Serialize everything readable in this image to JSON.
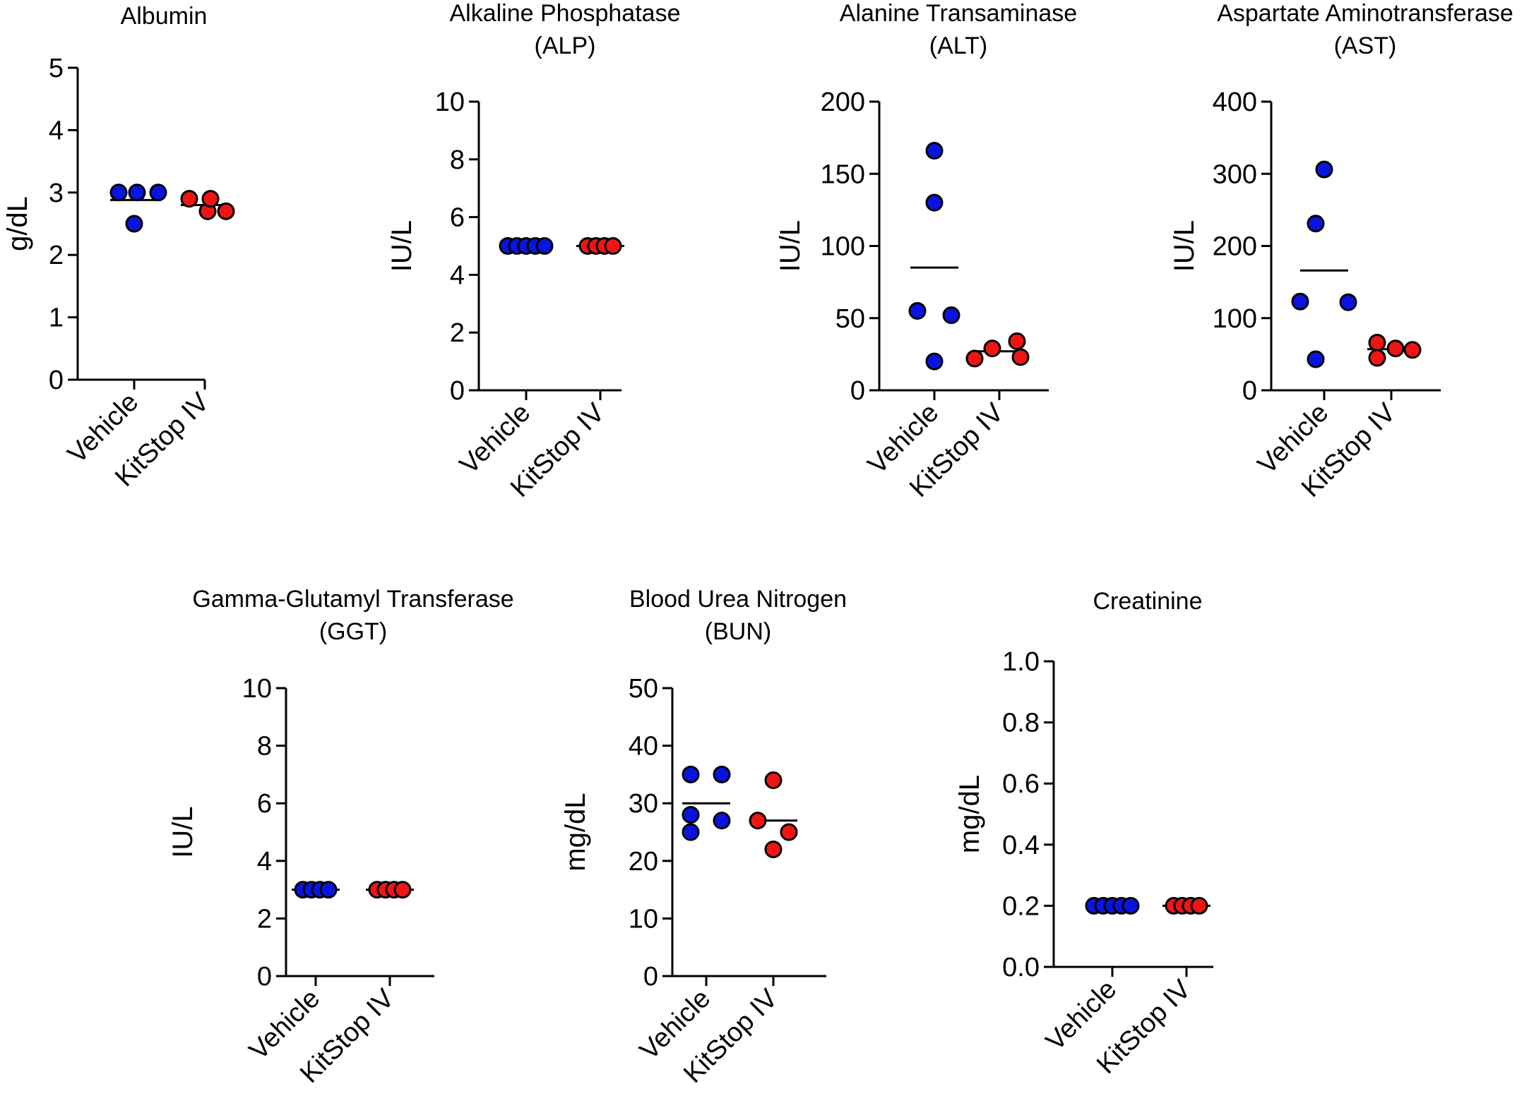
{
  "chart_data": [
    {
      "type": "scatter",
      "title": [
        "Albumin"
      ],
      "ylabel": "g/dL",
      "ylim": [
        0,
        5
      ],
      "yticks": [
        "0",
        "1",
        "2",
        "3",
        "4",
        "5"
      ],
      "categories": [
        "Vehicle",
        "KitStop IV"
      ],
      "series": [
        {
          "name": "Vehicle",
          "color": "#0a14e0",
          "values": [
            3.0,
            3.0,
            3.0,
            2.5
          ],
          "mean": 2.88
        },
        {
          "name": "KitStop IV",
          "color": "#ef1515",
          "values": [
            2.9,
            2.7,
            2.7,
            2.9
          ],
          "mean": 2.8
        }
      ]
    },
    {
      "type": "scatter",
      "title": [
        "Alkaline Phosphatase",
        "(ALP)"
      ],
      "ylabel": "IU/L",
      "ylim": [
        0,
        10
      ],
      "yticks": [
        "0",
        "2",
        "4",
        "6",
        "8",
        "10"
      ],
      "categories": [
        "Vehicle",
        "KitStop IV"
      ],
      "series": [
        {
          "name": "Vehicle",
          "color": "#0a14e0",
          "values": [
            5,
            5,
            5,
            5,
            5
          ],
          "mean": 5
        },
        {
          "name": "KitStop IV",
          "color": "#ef1515",
          "values": [
            5,
            5,
            5,
            5
          ],
          "mean": 5
        }
      ]
    },
    {
      "type": "scatter",
      "title": [
        "Alanine Transaminase",
        "(ALT)"
      ],
      "ylabel": "IU/L",
      "ylim": [
        0,
        200
      ],
      "yticks": [
        "0",
        "50",
        "100",
        "150",
        "200"
      ],
      "categories": [
        "Vehicle",
        "KitStop IV"
      ],
      "series": [
        {
          "name": "Vehicle",
          "color": "#0a14e0",
          "values": [
            166,
            130,
            55,
            52,
            20
          ],
          "mean": 85
        },
        {
          "name": "KitStop IV",
          "color": "#ef1515",
          "values": [
            22,
            29,
            34,
            23
          ],
          "mean": 27
        }
      ]
    },
    {
      "type": "scatter",
      "title": [
        "Aspartate Aminotransferase",
        "(AST)"
      ],
      "ylabel": "IU/L",
      "ylim": [
        0,
        400
      ],
      "yticks": [
        "0",
        "100",
        "200",
        "300",
        "400"
      ],
      "categories": [
        "Vehicle",
        "KitStop IV"
      ],
      "series": [
        {
          "name": "Vehicle",
          "color": "#0a14e0",
          "values": [
            306,
            231,
            123,
            122,
            43
          ],
          "mean": 166
        },
        {
          "name": "KitStop IV",
          "color": "#ef1515",
          "values": [
            66,
            45,
            58,
            56
          ],
          "mean": 57
        }
      ]
    },
    {
      "type": "scatter",
      "title": [
        "Gamma-Glutamyl Transferase",
        "(GGT)"
      ],
      "ylabel": "IU/L",
      "ylim": [
        0,
        10
      ],
      "yticks": [
        "0",
        "2",
        "4",
        "6",
        "8",
        "10"
      ],
      "categories": [
        "Vehicle",
        "KitStop IV"
      ],
      "series": [
        {
          "name": "Vehicle",
          "color": "#0a14e0",
          "values": [
            3,
            3,
            3,
            3
          ],
          "mean": 3
        },
        {
          "name": "KitStop IV",
          "color": "#ef1515",
          "values": [
            3,
            3,
            3,
            3
          ],
          "mean": 3
        }
      ]
    },
    {
      "type": "scatter",
      "title": [
        "Blood Urea Nitrogen",
        "(BUN)"
      ],
      "ylabel": "mg/dL",
      "ylim": [
        0,
        50
      ],
      "yticks": [
        "0",
        "10",
        "20",
        "30",
        "40",
        "50"
      ],
      "categories": [
        "Vehicle",
        "KitStop IV"
      ],
      "series": [
        {
          "name": "Vehicle",
          "color": "#0a14e0",
          "values": [
            35,
            35,
            28,
            27,
            25
          ],
          "mean": 30
        },
        {
          "name": "KitStop IV",
          "color": "#ef1515",
          "values": [
            34,
            27,
            25,
            22
          ],
          "mean": 27
        }
      ]
    },
    {
      "type": "scatter",
      "title": [
        "Creatinine"
      ],
      "ylabel": "mg/dL",
      "ylim": [
        0,
        1.0
      ],
      "yticks": [
        "0.0",
        "0.2",
        "0.4",
        "0.6",
        "0.8",
        "1.0"
      ],
      "categories": [
        "Vehicle",
        "KitStop IV"
      ],
      "series": [
        {
          "name": "Vehicle",
          "color": "#0a14e0",
          "values": [
            0.2,
            0.2,
            0.2,
            0.2,
            0.2
          ],
          "mean": 0.2
        },
        {
          "name": "KitStop IV",
          "color": "#ef1515",
          "values": [
            0.2,
            0.2,
            0.2,
            0.2
          ],
          "mean": 0.2
        }
      ]
    }
  ]
}
